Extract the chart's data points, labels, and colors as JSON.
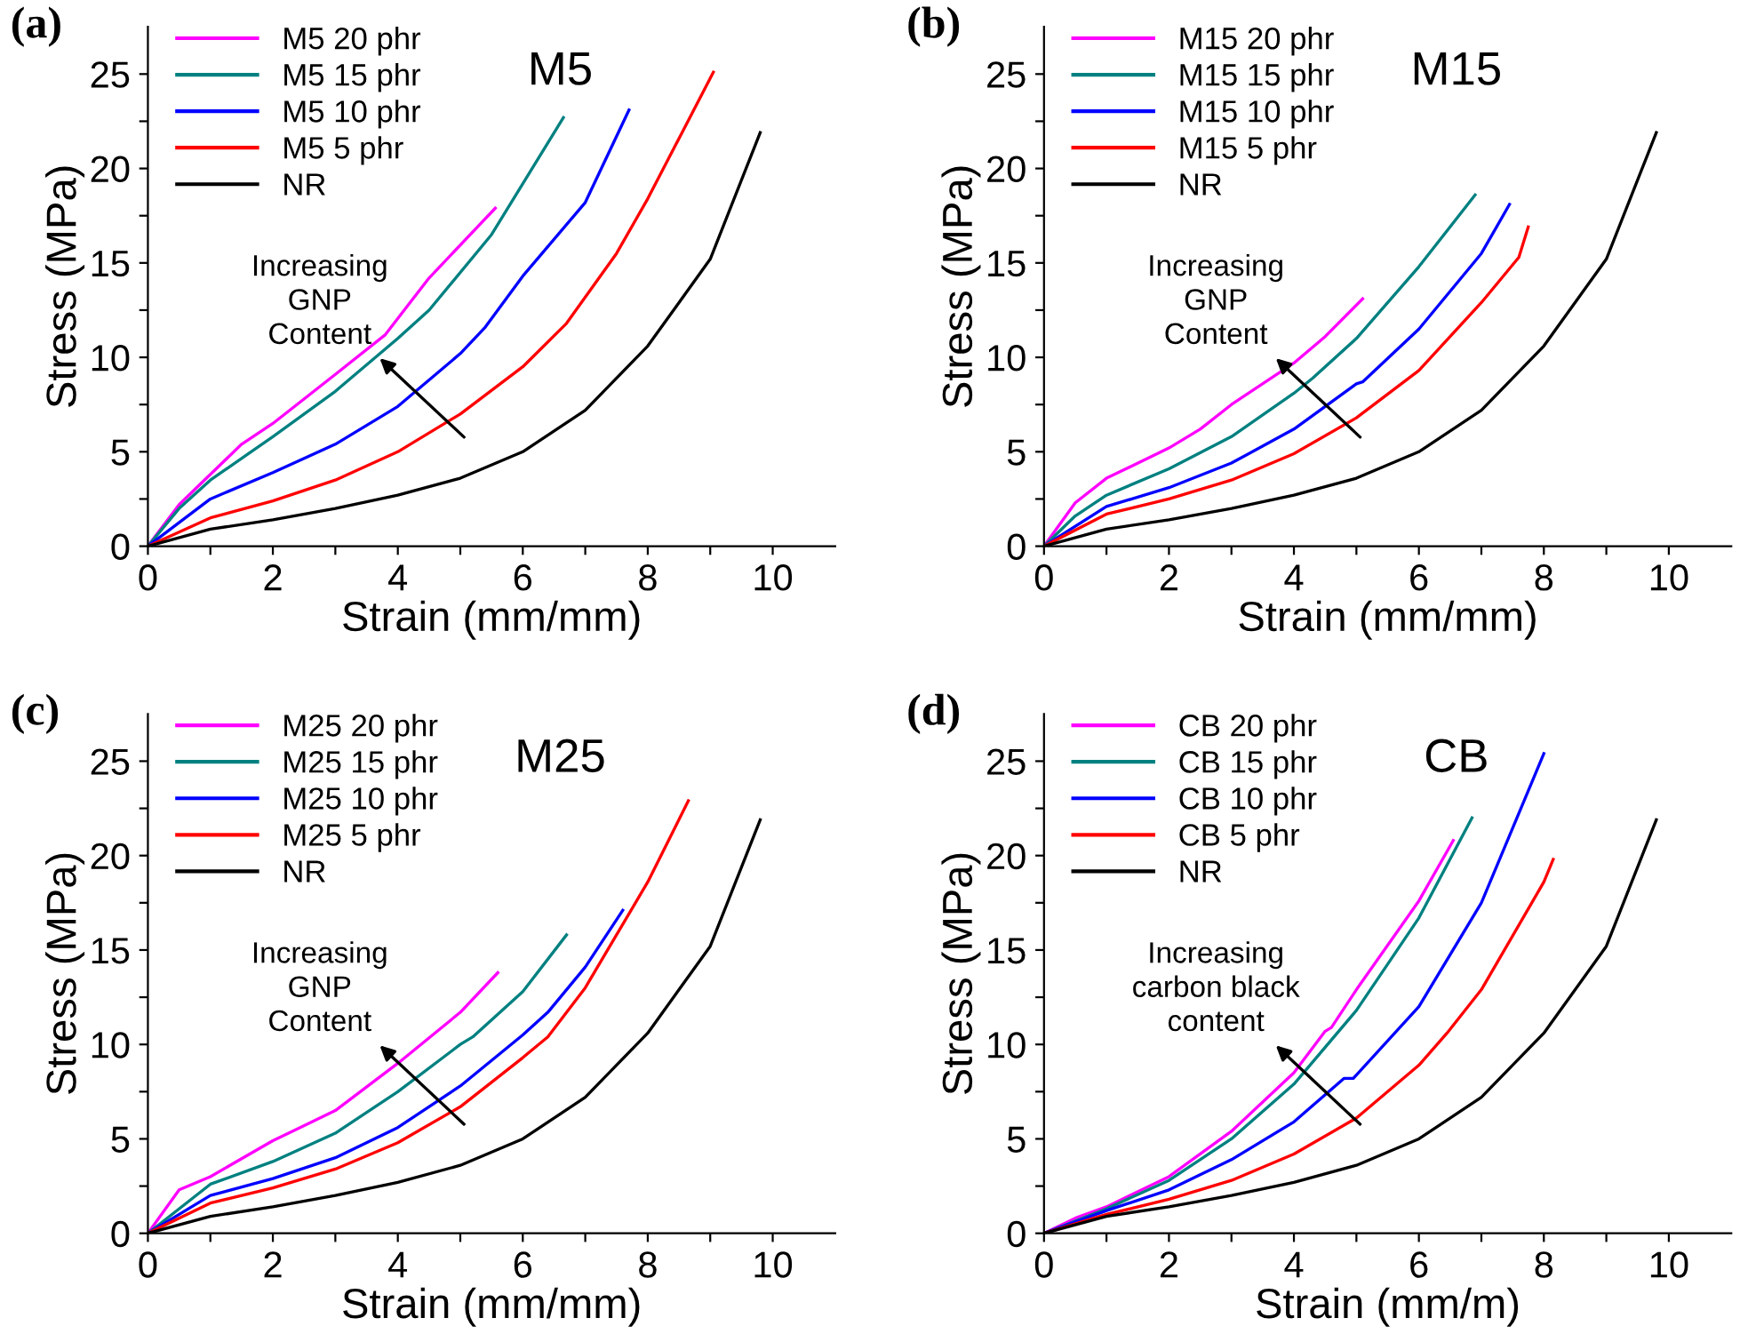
{
  "chart_data": [
    {
      "type": "line",
      "title": "M5",
      "xlabel": "Strain (mm/mm)",
      "ylabel": "Stress (MPa)",
      "xlim": [
        0,
        11
      ],
      "ylim": [
        0,
        27.5
      ],
      "xticks": [
        0,
        {
          "value": 1,
          "label": null
        },
        2,
        {
          "value": 3,
          "label": null
        },
        4,
        {
          "value": 5,
          "label": null
        },
        6,
        {
          "value": 7,
          "label": null
        },
        8,
        {
          "value": 9,
          "label": null
        },
        10
      ],
      "yticks": [
        0,
        {
          "value": 2.5,
          "label": null
        },
        5,
        {
          "value": 7.5,
          "label": null
        },
        10,
        {
          "value": 12.5,
          "label": null
        },
        15,
        {
          "value": 17.5,
          "label": null
        },
        20,
        {
          "value": 22.5,
          "label": null
        },
        25
      ],
      "legend": "top left",
      "annotations": [
        "(a)",
        "Increasing\nGNP\nContent"
      ],
      "series": [
        {
          "name": "M5 20 phr",
          "color": "#ff00ff",
          "x": [
            0,
            0.5,
            1,
            1.5,
            2,
            3,
            3.8,
            4.5,
            5.56
          ],
          "values": [
            0,
            2.2,
            3.8,
            5.4,
            6.5,
            9.1,
            11.2,
            14.2,
            17.9
          ]
        },
        {
          "name": "M5 15 phr",
          "color": "#008080",
          "x": [
            0,
            0.5,
            1,
            2,
            3,
            4,
            4.5,
            5.5,
            6.65
          ],
          "values": [
            0,
            2.0,
            3.5,
            5.8,
            8.2,
            11.0,
            12.5,
            16.5,
            22.7
          ]
        },
        {
          "name": "M5 10 phr",
          "color": "#0000ff",
          "x": [
            0,
            1,
            2,
            3,
            4,
            5,
            5.4,
            6,
            7,
            7.7
          ],
          "values": [
            0,
            2.5,
            3.9,
            5.4,
            7.4,
            10.2,
            11.6,
            14.3,
            18.2,
            23.1
          ]
        },
        {
          "name": "M5 5 phr",
          "color": "#ff0000",
          "x": [
            0,
            1,
            2,
            3,
            4,
            5,
            6,
            6.7,
            7.5,
            8,
            9.05
          ],
          "values": [
            0,
            1.5,
            2.4,
            3.5,
            5.0,
            7.0,
            9.5,
            11.8,
            15.5,
            18.4,
            25.1
          ]
        },
        {
          "name": "NR",
          "color": "#000000",
          "x": [
            0,
            1,
            2,
            3,
            4,
            5,
            6,
            7,
            8,
            9,
            9.8
          ],
          "values": [
            0,
            0.9,
            1.4,
            2.0,
            2.7,
            3.6,
            5.0,
            7.2,
            10.6,
            15.2,
            21.9
          ]
        }
      ]
    },
    {
      "type": "line",
      "title": "M15",
      "xlabel": "Strain (mm/mm)",
      "ylabel": "Stress (MPa)",
      "xlim": [
        0,
        11
      ],
      "ylim": [
        0,
        27.5
      ],
      "xticks": [
        0,
        {
          "value": 1,
          "label": null
        },
        2,
        {
          "value": 3,
          "label": null
        },
        4,
        {
          "value": 5,
          "label": null
        },
        6,
        {
          "value": 7,
          "label": null
        },
        8,
        {
          "value": 9,
          "label": null
        },
        10
      ],
      "yticks": [
        0,
        {
          "value": 2.5,
          "label": null
        },
        5,
        {
          "value": 7.5,
          "label": null
        },
        10,
        {
          "value": 12.5,
          "label": null
        },
        15,
        {
          "value": 17.5,
          "label": null
        },
        20,
        {
          "value": 22.5,
          "label": null
        },
        25
      ],
      "legend": "top left",
      "annotations": [
        "(b)",
        "Increasing\nGNP\nContent"
      ],
      "series": [
        {
          "name": "M15 20 phr",
          "color": "#ff00ff",
          "x": [
            0,
            0.5,
            1,
            2,
            2.5,
            3,
            4,
            4.5,
            5.1
          ],
          "values": [
            0,
            2.3,
            3.6,
            5.2,
            6.2,
            7.5,
            9.7,
            11.1,
            13.1
          ]
        },
        {
          "name": "M15 15 phr",
          "color": "#008080",
          "x": [
            0,
            0.5,
            1,
            2,
            3,
            4,
            4.3,
            5,
            6,
            6.9
          ],
          "values": [
            0,
            1.6,
            2.7,
            4.1,
            5.8,
            8.1,
            8.9,
            11.0,
            14.8,
            18.6
          ]
        },
        {
          "name": "M15 10 phr",
          "color": "#0000ff",
          "x": [
            0,
            1,
            2,
            3,
            4,
            5,
            5.1,
            6,
            7,
            7.45
          ],
          "values": [
            0,
            2.1,
            3.1,
            4.4,
            6.2,
            8.6,
            8.7,
            11.5,
            15.5,
            18.1
          ]
        },
        {
          "name": "M15 5 phr",
          "color": "#ff0000",
          "x": [
            0,
            1,
            2,
            3,
            4,
            5,
            6,
            7,
            7.6,
            7.75
          ],
          "values": [
            0,
            1.7,
            2.5,
            3.5,
            4.9,
            6.8,
            9.3,
            12.9,
            15.3,
            16.9
          ]
        },
        {
          "name": "NR",
          "color": "#000000",
          "x": [
            0,
            1,
            2,
            3,
            4,
            5,
            6,
            7,
            8,
            9,
            9.8
          ],
          "values": [
            0,
            0.9,
            1.4,
            2.0,
            2.7,
            3.6,
            5.0,
            7.2,
            10.6,
            15.2,
            21.9
          ]
        }
      ]
    },
    {
      "type": "line",
      "title": "M25",
      "xlabel": "Strain (mm/mm)",
      "ylabel": "Stress (MPa)",
      "xlim": [
        0,
        11
      ],
      "ylim": [
        0,
        27.5
      ],
      "xticks": [
        0,
        {
          "value": 1,
          "label": null
        },
        2,
        {
          "value": 3,
          "label": null
        },
        4,
        {
          "value": 5,
          "label": null
        },
        6,
        {
          "value": 7,
          "label": null
        },
        8,
        {
          "value": 9,
          "label": null
        },
        10
      ],
      "yticks": [
        0,
        {
          "value": 2.5,
          "label": null
        },
        5,
        {
          "value": 7.5,
          "label": null
        },
        10,
        {
          "value": 12.5,
          "label": null
        },
        15,
        {
          "value": 17.5,
          "label": null
        },
        20,
        {
          "value": 22.5,
          "label": null
        },
        25
      ],
      "legend": "top left",
      "annotations": [
        "(c)",
        "Increasing\nGNP\nContent"
      ],
      "series": [
        {
          "name": "M25 20 phr",
          "color": "#ff00ff",
          "x": [
            0,
            0.5,
            1,
            2,
            3,
            4,
            5,
            5.6
          ],
          "values": [
            0,
            2.3,
            3.0,
            4.9,
            6.5,
            9.0,
            11.7,
            13.8
          ]
        },
        {
          "name": "M25 15 phr",
          "color": "#008080",
          "x": [
            0,
            1,
            2,
            3,
            4,
            5,
            5.2,
            6,
            6.7
          ],
          "values": [
            0,
            2.6,
            3.8,
            5.3,
            7.5,
            10.0,
            10.4,
            12.8,
            15.8
          ]
        },
        {
          "name": "M25 10 phr",
          "color": "#0000ff",
          "x": [
            0,
            1,
            2,
            3,
            4,
            5,
            6,
            6.4,
            7,
            7.6
          ],
          "values": [
            0,
            2.0,
            2.9,
            4.0,
            5.6,
            7.8,
            10.5,
            11.7,
            14.1,
            17.1
          ]
        },
        {
          "name": "M25 5 phr",
          "color": "#ff0000",
          "x": [
            0,
            1,
            2,
            3,
            4,
            5,
            6,
            6.4,
            7,
            8,
            8.65
          ],
          "values": [
            0,
            1.6,
            2.4,
            3.4,
            4.8,
            6.7,
            9.3,
            10.4,
            13.0,
            18.6,
            22.9
          ]
        },
        {
          "name": "NR",
          "color": "#000000",
          "x": [
            0,
            1,
            2,
            3,
            4,
            5,
            6,
            7,
            8,
            9,
            9.8
          ],
          "values": [
            0,
            0.9,
            1.4,
            2.0,
            2.7,
            3.6,
            5.0,
            7.2,
            10.6,
            15.2,
            21.9
          ]
        }
      ]
    },
    {
      "type": "line",
      "title": "CB",
      "xlabel": "Strain (mm/m)",
      "ylabel": "Stress (MPa)",
      "xlim": [
        0,
        11
      ],
      "ylim": [
        0,
        27.5
      ],
      "xticks": [
        0,
        {
          "value": 1,
          "label": null
        },
        2,
        {
          "value": 3,
          "label": null
        },
        4,
        {
          "value": 5,
          "label": null
        },
        6,
        {
          "value": 7,
          "label": null
        },
        8,
        {
          "value": 9,
          "label": null
        },
        10
      ],
      "yticks": [
        0,
        {
          "value": 2.5,
          "label": null
        },
        5,
        {
          "value": 7.5,
          "label": null
        },
        10,
        {
          "value": 12.5,
          "label": null
        },
        15,
        {
          "value": 17.5,
          "label": null
        },
        20,
        {
          "value": 22.5,
          "label": null
        },
        25
      ],
      "legend": "top left",
      "annotations": [
        "(d)",
        "Increasing\ncarbon black\ncontent"
      ],
      "series": [
        {
          "name": "CB 20 phr",
          "color": "#ff00ff",
          "x": [
            0,
            0.5,
            1,
            2,
            3,
            4,
            4.5,
            4.6,
            5,
            6,
            6.55
          ],
          "values": [
            0,
            0.8,
            1.4,
            3.0,
            5.4,
            8.5,
            10.7,
            10.9,
            12.9,
            17.6,
            20.8
          ]
        },
        {
          "name": "CB 15 phr",
          "color": "#008080",
          "x": [
            0,
            1,
            2,
            3,
            4,
            5,
            6,
            6.85
          ],
          "values": [
            0,
            1.3,
            2.8,
            5.0,
            7.9,
            11.8,
            16.7,
            22.0
          ]
        },
        {
          "name": "CB 10 phr",
          "color": "#0000ff",
          "x": [
            0,
            1,
            2,
            3,
            4,
            4.8,
            4.95,
            6,
            7,
            8
          ],
          "values": [
            0,
            1.2,
            2.3,
            3.9,
            5.9,
            8.2,
            8.2,
            12.0,
            17.5,
            25.4
          ]
        },
        {
          "name": "CB 5 phr",
          "color": "#ff0000",
          "x": [
            0,
            1,
            2,
            3,
            4,
            5,
            6,
            6.45,
            7,
            8,
            8.15
          ],
          "values": [
            0,
            1.0,
            1.8,
            2.8,
            4.2,
            6.1,
            8.9,
            10.6,
            12.9,
            18.6,
            19.8
          ]
        },
        {
          "name": "NR",
          "color": "#000000",
          "x": [
            0,
            1,
            2,
            3,
            4,
            5,
            6,
            7,
            8,
            9,
            9.8
          ],
          "values": [
            0,
            0.9,
            1.4,
            2.0,
            2.7,
            3.6,
            5.0,
            7.2,
            10.6,
            15.2,
            21.9
          ]
        }
      ]
    }
  ]
}
